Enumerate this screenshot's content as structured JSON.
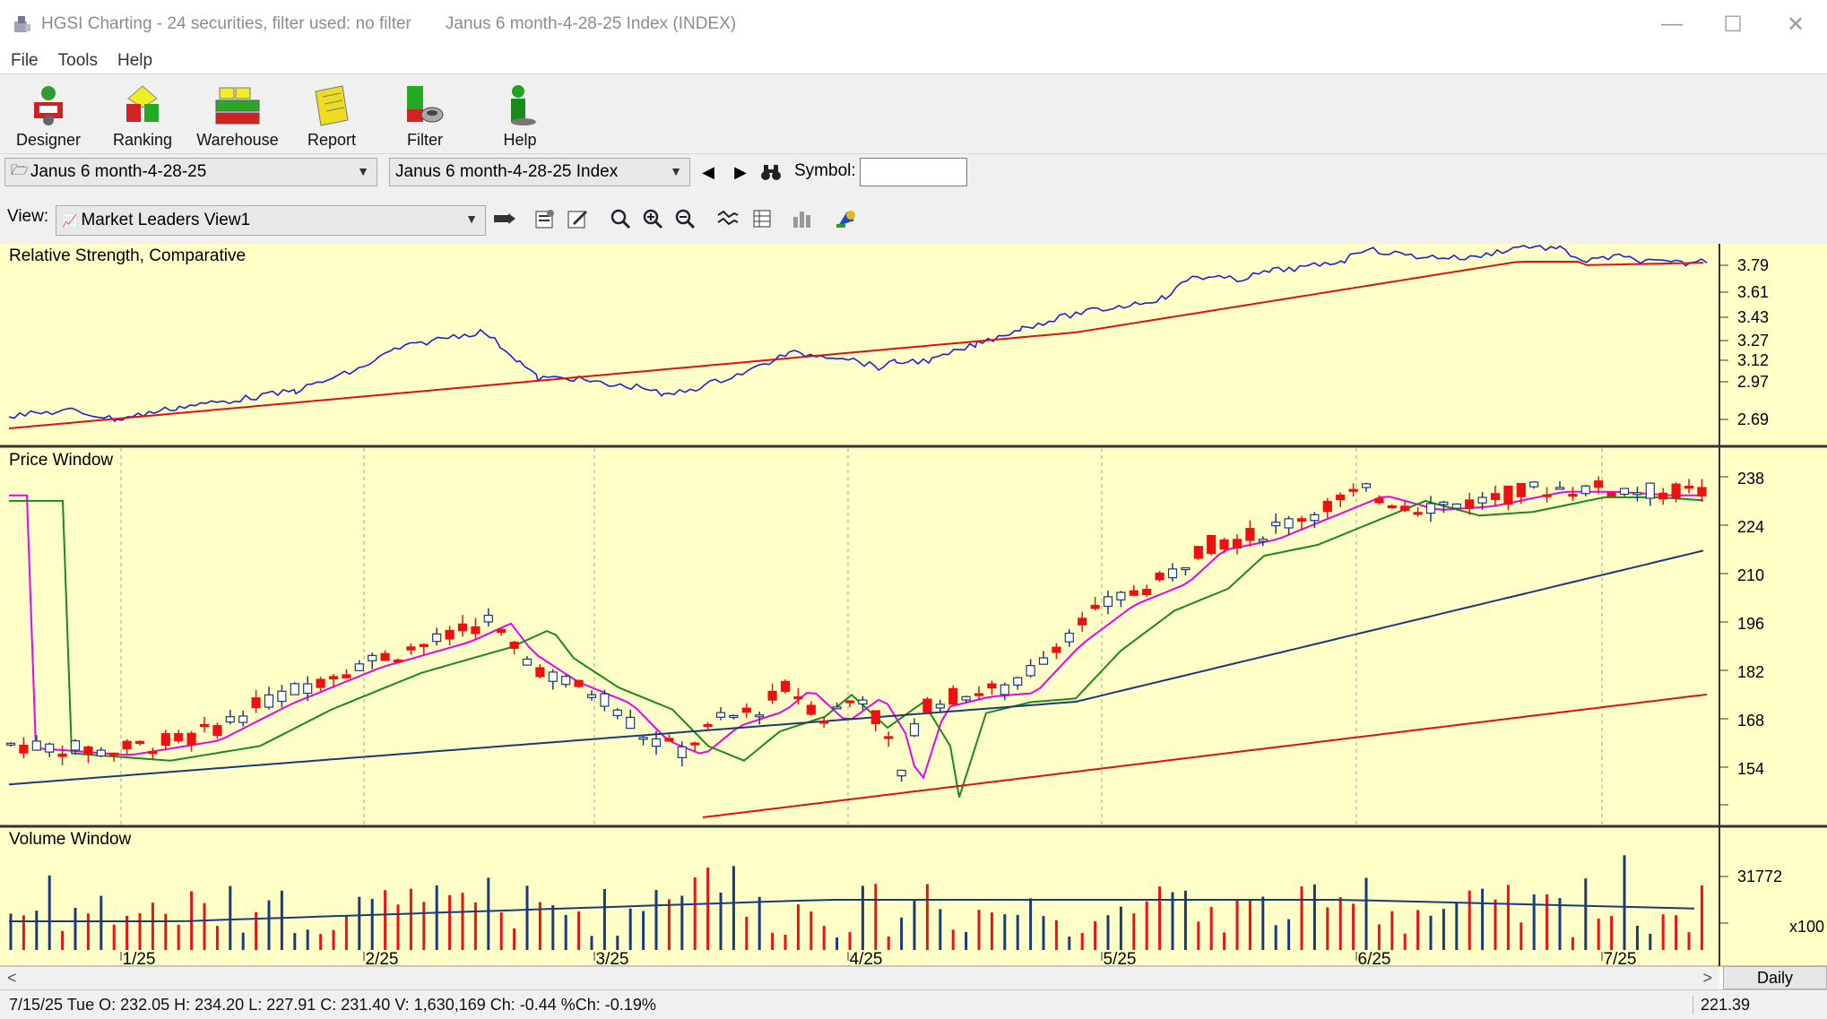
{
  "window": {
    "app_title": "HGSI Charting - 24 securities, filter used: no filter",
    "doc_title": "Janus 6 month-4-28-25 Index (INDEX)",
    "minimize": "—",
    "maximize": "☐",
    "close": "✕"
  },
  "menu": [
    "File",
    "Tools",
    "Help"
  ],
  "toolbar": [
    {
      "label": "Designer",
      "icon": "designer-icon"
    },
    {
      "label": "Ranking",
      "icon": "ranking-icon"
    },
    {
      "label": "Warehouse",
      "icon": "warehouse-icon"
    },
    {
      "label": "Report",
      "icon": "report-icon"
    },
    {
      "label": "Filter",
      "icon": "filter-icon"
    },
    {
      "label": "Help",
      "icon": "help-icon"
    }
  ],
  "selectors": {
    "list_value": "Janus 6 month-4-28-25",
    "index_value": "Janus 6 month-4-28-25 Index",
    "symbol_label": "Symbol:",
    "symbol_value": ""
  },
  "view": {
    "label": "View:",
    "value": "Market Leaders View1"
  },
  "panels": {
    "rs_title": "Relative Strength, Comparative",
    "price_title": "Price Window",
    "volume_title": "Volume Window"
  },
  "axes": {
    "rs_ticks": [
      "3.79",
      "3.61",
      "3.43",
      "3.27",
      "3.12",
      "2.97",
      "2.69"
    ],
    "price_ticks": [
      "238",
      "224",
      "210",
      "196",
      "182",
      "168",
      "154"
    ],
    "volume_tick": "31772",
    "volume_unit": "x100",
    "dates": [
      "1/25",
      "2/25",
      "3/25",
      "4/25",
      "5/25",
      "6/25",
      "7/25"
    ]
  },
  "colors": {
    "chart_bg": "#ffffc8",
    "rs_line": "#1f1fd6",
    "rs_ma": "#e01010",
    "up_candle": "#1a3a7a",
    "down_candle": "#ee1111",
    "ma_magenta": "#ee00ee",
    "ma_green": "#1a8a1a",
    "ma_blue": "#1a3a7a",
    "ma_red": "#e01010"
  },
  "scroll": {
    "left": "<",
    "right": ">"
  },
  "period_button": "Daily",
  "status": {
    "info": "7/15/25 Tue O: 232.05 H: 234.20 L: 227.91 C: 231.40 V: 1,630,169 Ch: -0.44 %Ch: -0.19%",
    "price": "221.39"
  },
  "chart_data": {
    "type": "candlestick",
    "series_count": 6,
    "price_range": [
      144,
      242
    ],
    "last_bar": {
      "date": "7/15/25",
      "open": 232.05,
      "high": 234.2,
      "low": 227.91,
      "close": 231.4,
      "volume": 1630169
    }
  }
}
